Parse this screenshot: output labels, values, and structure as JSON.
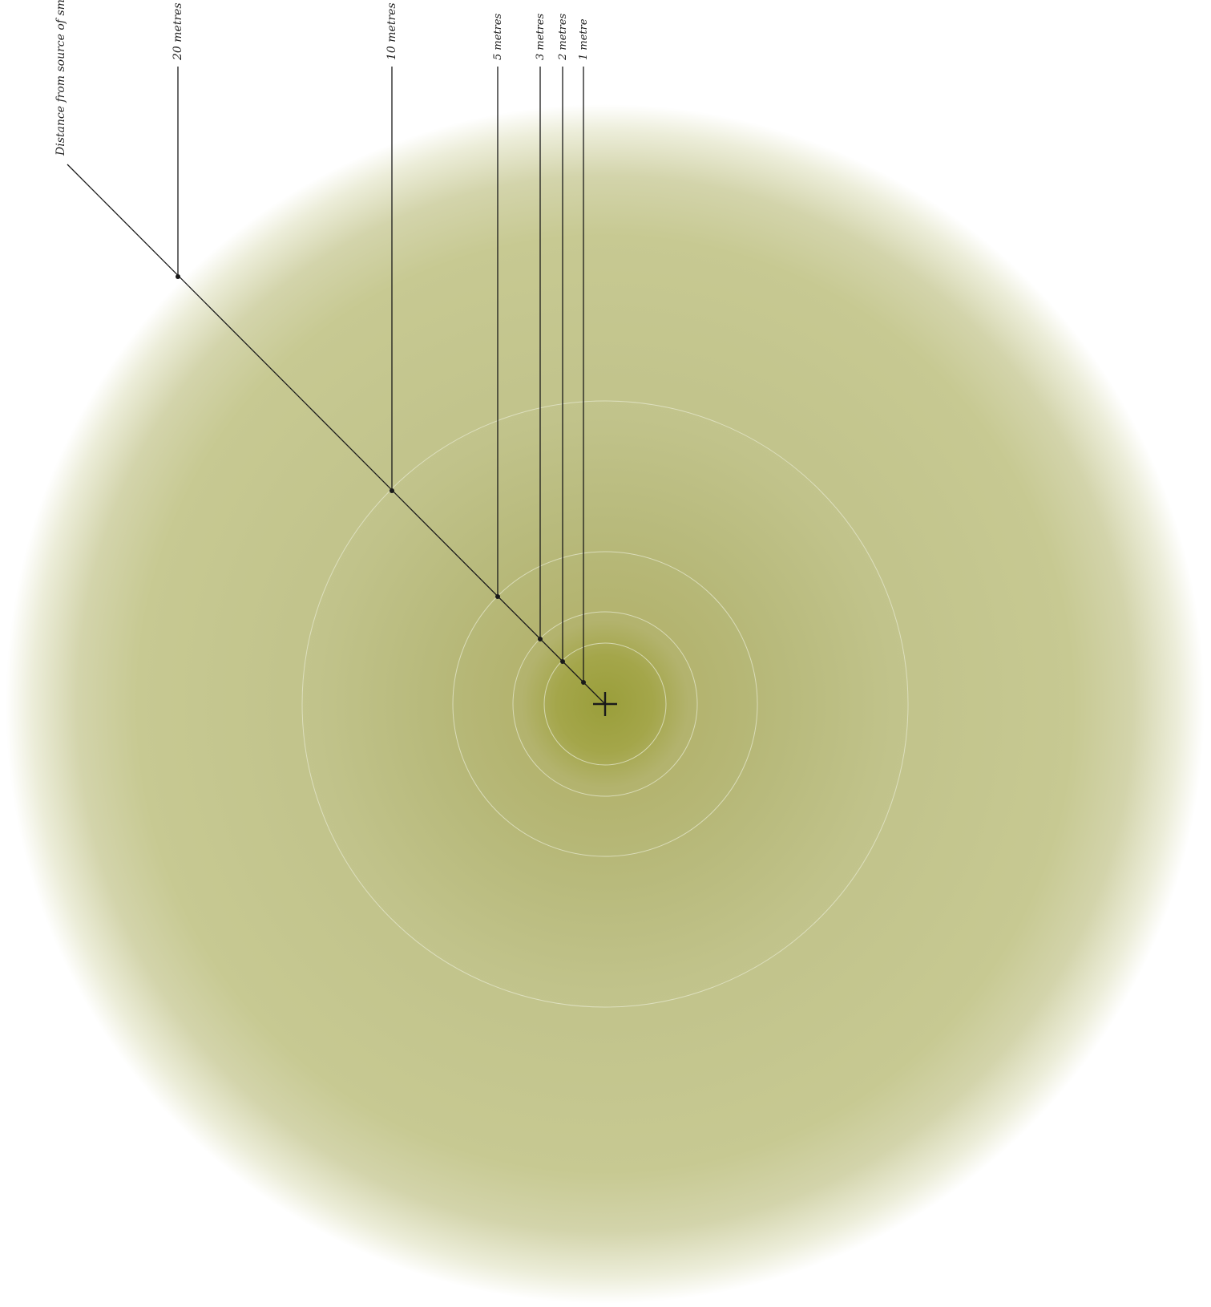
{
  "axis_label": "Distance from source of smell",
  "distances": [
    {
      "metres": 20,
      "label": "20 metres"
    },
    {
      "metres": 10,
      "label": "10 metres"
    },
    {
      "metres": 5,
      "label": "5 metres"
    },
    {
      "metres": 3,
      "label": "3 metres"
    },
    {
      "metres": 2,
      "label": "2 metres"
    },
    {
      "metres": 1,
      "label": "1 metre"
    }
  ],
  "colors": {
    "core": "#9a9e3a",
    "inner": "#b3b36e",
    "mid": "#bfc086",
    "outer": "#c7c992",
    "edge": "#ffffff",
    "ring_line": "#e6e8cf",
    "ink": "#1a1a1a"
  },
  "source_marker": "plus-icon"
}
